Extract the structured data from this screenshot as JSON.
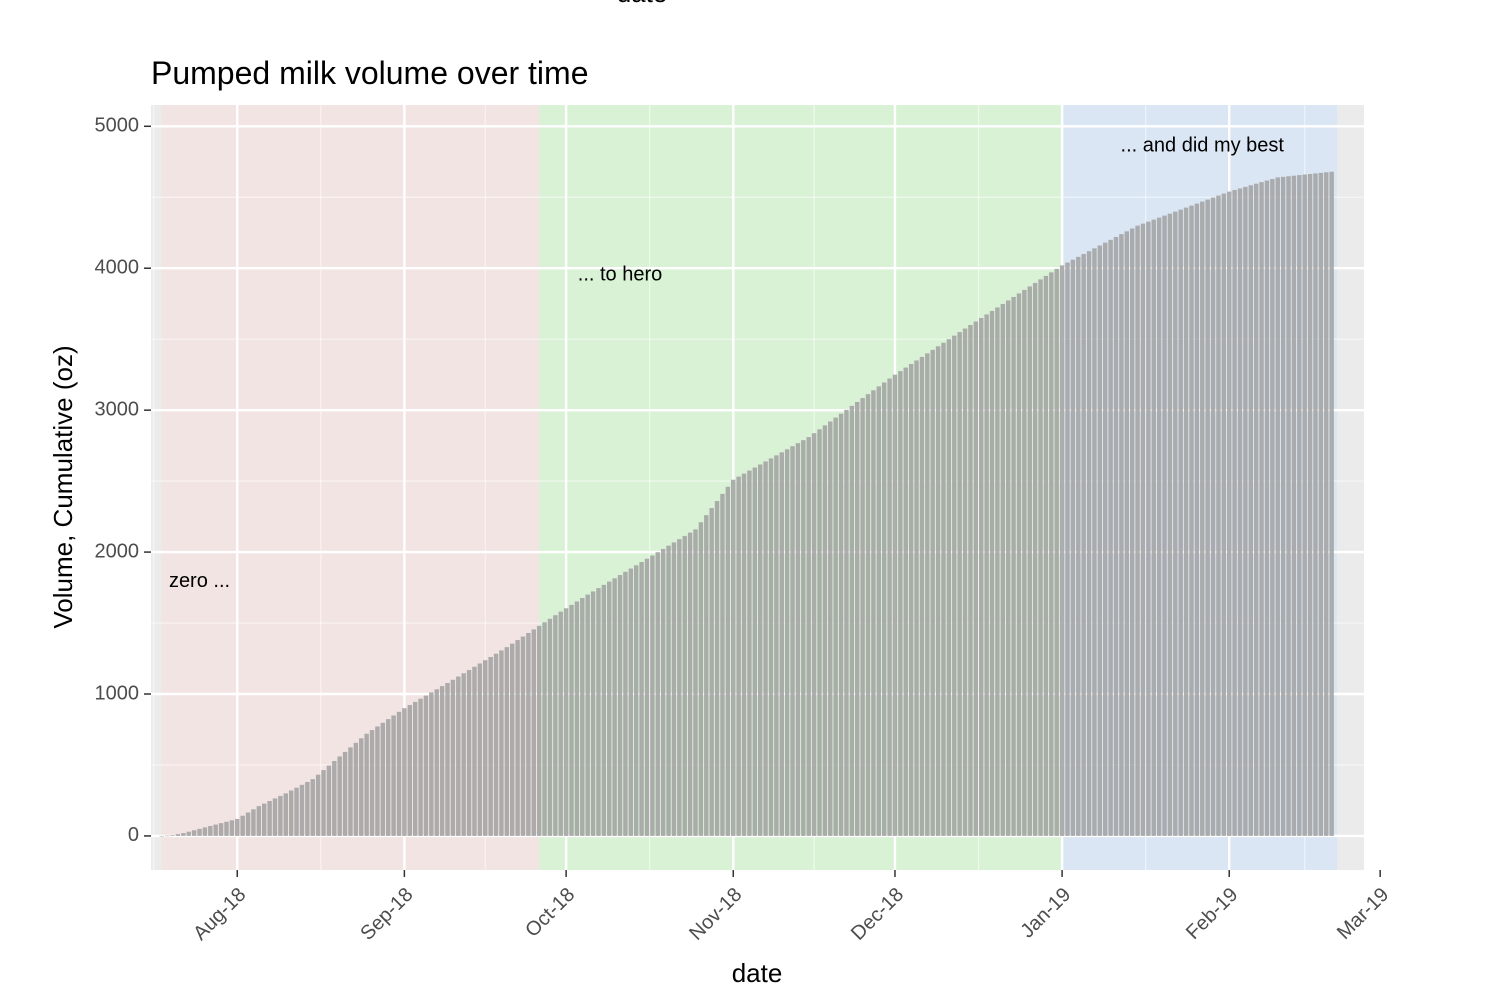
{
  "chart_data": {
    "type": "bar",
    "title": "Pumped milk volume over time",
    "top_strip_label": "date",
    "xlabel": "date",
    "ylabel": "Volume, Cumulative (oz)",
    "x_axis_type": "date",
    "xlim": [
      "2018-07-16",
      "2019-02-26"
    ],
    "ylim": [
      -240,
      5150
    ],
    "x_ticks": [
      {
        "date": "2018-08-01",
        "label": "Aug-18"
      },
      {
        "date": "2018-09-01",
        "label": "Sep-18"
      },
      {
        "date": "2018-10-01",
        "label": "Oct-18"
      },
      {
        "date": "2018-11-01",
        "label": "Nov-18"
      },
      {
        "date": "2018-12-01",
        "label": "Dec-18"
      },
      {
        "date": "2019-01-01",
        "label": "Jan-19"
      },
      {
        "date": "2019-02-01",
        "label": "Feb-19"
      },
      {
        "date": "2019-03-01",
        "label": "Mar-19"
      }
    ],
    "y_ticks": [
      0,
      1000,
      2000,
      3000,
      4000,
      5000
    ],
    "grid": true,
    "background": "#ebebeb",
    "bar_color": "#a0a0a0",
    "bar_opacity": 0.85,
    "series": [
      {
        "values_by_date": [
          {
            "date": "2018-07-18",
            "value": 0
          },
          {
            "date": "2018-07-20",
            "value": 5
          },
          {
            "date": "2018-07-22",
            "value": 20
          },
          {
            "date": "2018-07-25",
            "value": 50
          },
          {
            "date": "2018-07-28",
            "value": 80
          },
          {
            "date": "2018-08-01",
            "value": 120
          },
          {
            "date": "2018-08-05",
            "value": 210
          },
          {
            "date": "2018-08-10",
            "value": 300
          },
          {
            "date": "2018-08-15",
            "value": 400
          },
          {
            "date": "2018-08-20",
            "value": 560
          },
          {
            "date": "2018-08-25",
            "value": 720
          },
          {
            "date": "2018-09-01",
            "value": 900
          },
          {
            "date": "2018-09-10",
            "value": 1100
          },
          {
            "date": "2018-09-20",
            "value": 1330
          },
          {
            "date": "2018-09-30",
            "value": 1580
          },
          {
            "date": "2018-10-05",
            "value": 1700
          },
          {
            "date": "2018-10-15",
            "value": 1930
          },
          {
            "date": "2018-10-25",
            "value": 2160
          },
          {
            "date": "2018-11-01",
            "value": 2510
          },
          {
            "date": "2018-11-15",
            "value": 2810
          },
          {
            "date": "2018-12-01",
            "value": 3250
          },
          {
            "date": "2018-12-15",
            "value": 3600
          },
          {
            "date": "2019-01-01",
            "value": 4020
          },
          {
            "date": "2019-01-15",
            "value": 4300
          },
          {
            "date": "2019-02-01",
            "value": 4540
          },
          {
            "date": "2019-02-10",
            "value": 4640
          },
          {
            "date": "2019-02-20",
            "value": 4680
          }
        ]
      }
    ],
    "phases": [
      {
        "start": "2018-07-18",
        "end": "2018-09-26",
        "color": "#f2e4e2",
        "label": "zero ...",
        "label_at": {
          "date": "2018-07-25",
          "value": 1790
        }
      },
      {
        "start": "2018-09-26",
        "end": "2019-01-01",
        "color": "#d9f2d6",
        "label": "... to hero",
        "label_at": {
          "date": "2018-10-11",
          "value": 3950
        }
      },
      {
        "start": "2019-01-01",
        "end": "2019-02-21",
        "color": "#dbe6f5",
        "label": "... and did my best",
        "label_at": {
          "date": "2019-01-27",
          "value": 4860
        }
      }
    ]
  }
}
